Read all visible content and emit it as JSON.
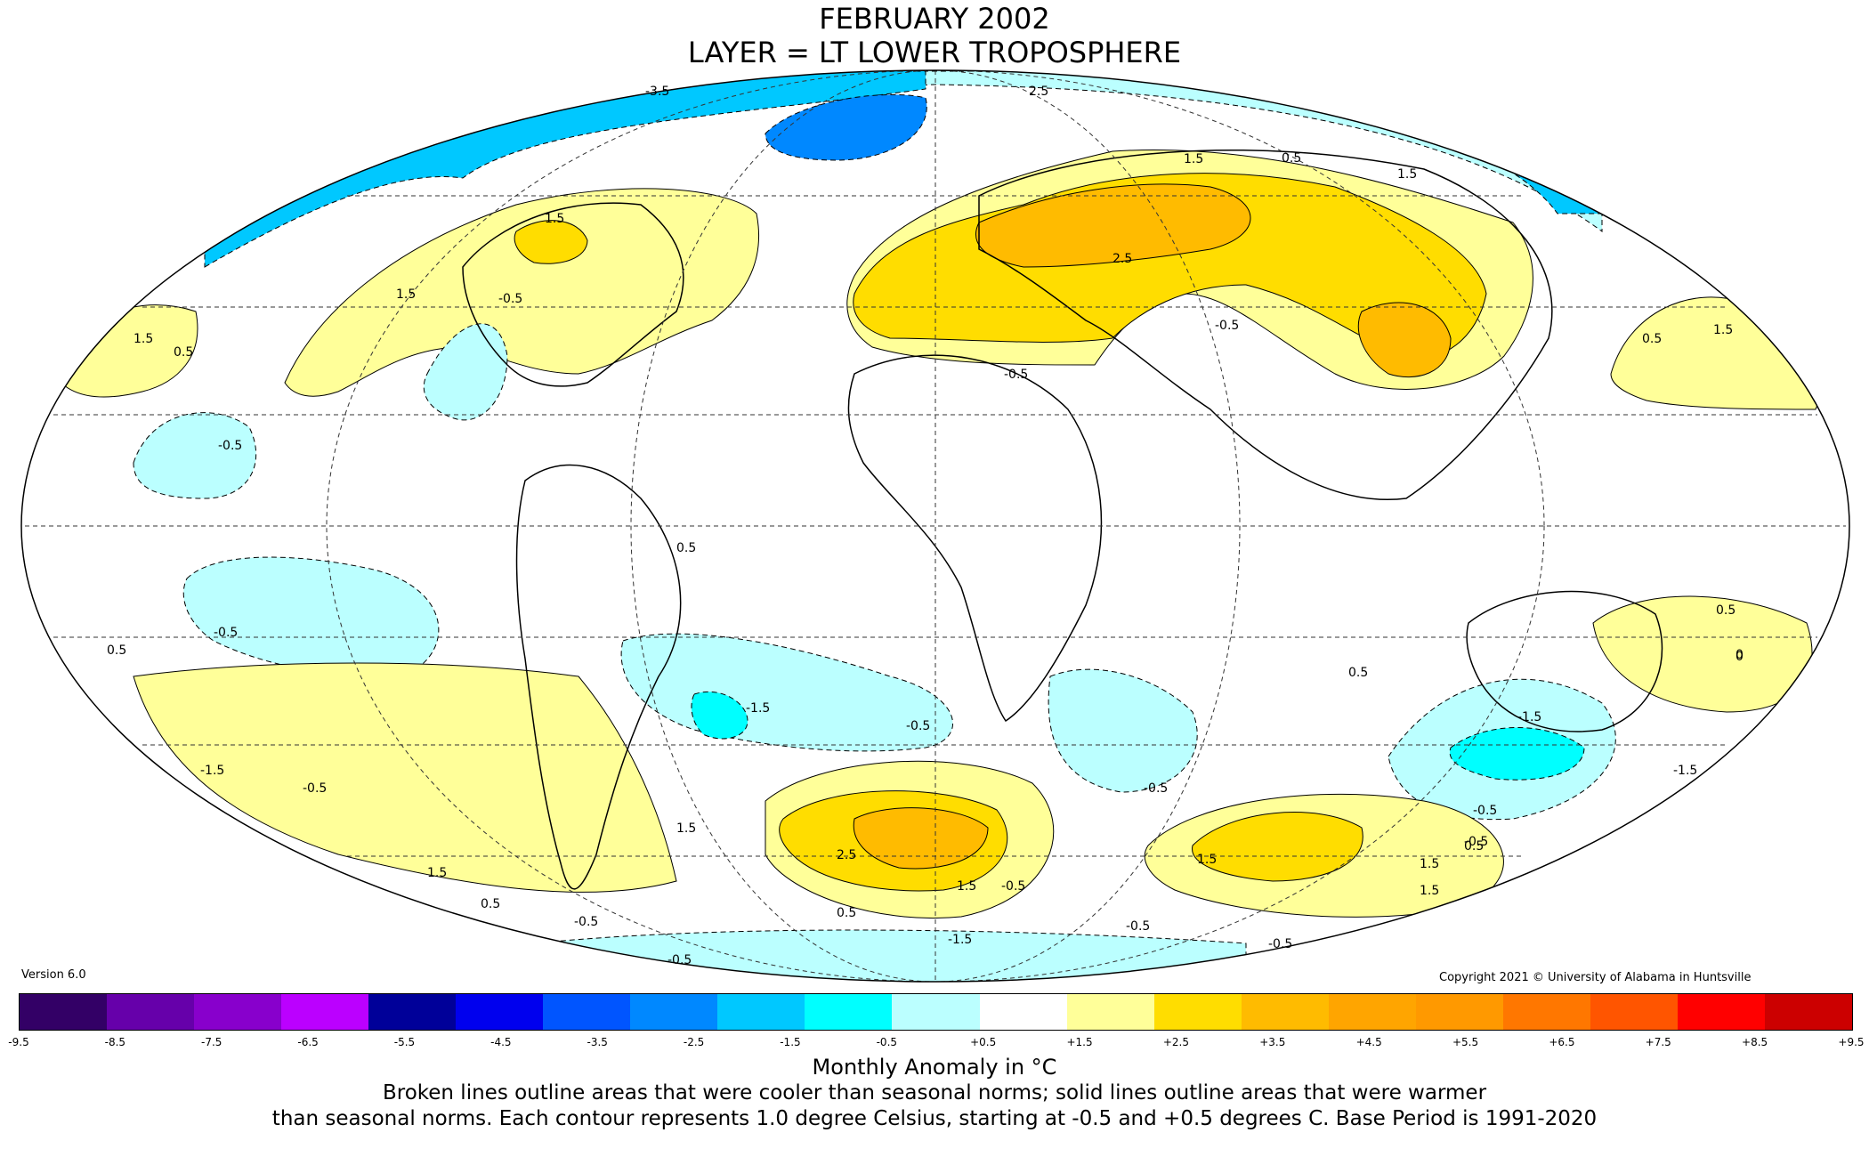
{
  "title": {
    "line1": "FEBRUARY 2002",
    "line2": "LAYER = LT LOWER TROPOSPHERE"
  },
  "version": "Version 6.0",
  "copyright": "Copyright 2021 © University of Alabama in Huntsville",
  "colors": {
    "ocean_bg": "#ffffff",
    "coast": "#000000",
    "grid": "#333333"
  },
  "colorbar": {
    "colors": [
      "#330066",
      "#6600aa",
      "#8800cc",
      "#bb00ff",
      "#000099",
      "#0000ee",
      "#0055ff",
      "#0088ff",
      "#00c8ff",
      "#00ffff",
      "#bbffff",
      "#ffffff",
      "#ffff99",
      "#ffdd00",
      "#ffbb00",
      "#ffa500",
      "#ff9900",
      "#ff7700",
      "#ff5500",
      "#ff0000",
      "#cc0000"
    ],
    "ticks": [
      "-9.5",
      "-8.5",
      "-7.5",
      "-6.5",
      "-5.5",
      "-4.5",
      "-3.5",
      "-2.5",
      "-1.5",
      "-0.5",
      "+0.5",
      "+1.5",
      "+2.5",
      "+3.5",
      "+4.5",
      "+5.5",
      "+6.5",
      "+7.5",
      "+8.5",
      "+9.5"
    ]
  },
  "contour_labels": [
    "-3.5",
    "2.5",
    "1.5",
    "0.5",
    "1.5",
    "1.5",
    "-0.5",
    "1.5",
    "0.5",
    "1.5",
    "-0.5",
    "2.5",
    "-0.5",
    "0.5",
    "-0.5",
    "1.5",
    "0.5",
    "0",
    "0.5",
    "-0.5",
    "-1.5",
    "-0.5",
    "-1.5",
    "0.5",
    "-1.5",
    "-0.5",
    "-0.5",
    "0.5",
    "1.5",
    "2.5",
    "1.5",
    "0.5",
    "1.5",
    "1.5",
    "-0.5",
    "-0.5",
    "-1.5",
    "-0.5",
    "-0.5",
    "0.5",
    "1.5",
    "1.5",
    "0.5",
    "-1.5",
    "-0.5",
    "-0.5",
    "-0.5",
    "0"
  ],
  "caption": {
    "units": "Monthly Anomaly in °C",
    "line1": "Broken lines outline areas that were cooler than seasonal norms; solid lines outline areas that were warmer",
    "line2": "than seasonal norms. Each contour represents 1.0 degree Celsius, starting at -0.5 and +0.5 degrees C. Base Period is 1991-2020"
  }
}
